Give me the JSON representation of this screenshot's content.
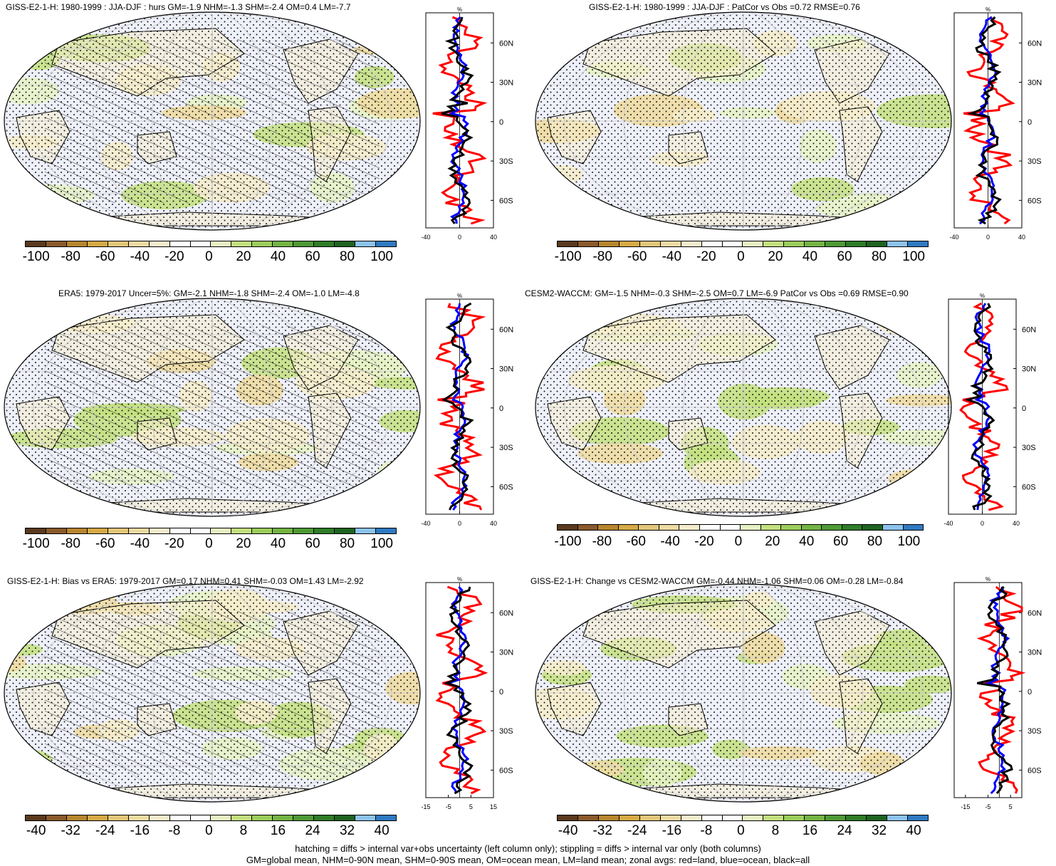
{
  "panels": [
    {
      "title": "GISS-E2-1-H: 1980-1999 : JJA-DJF : hurs GM=-1.9 NHM=-1.3 SHM=-2.4 OM=0.4 LM=-7.7",
      "colorbar_labels": [
        "-100",
        "-80",
        "-60",
        "-40",
        "-20",
        "0",
        "20",
        "40",
        "60",
        "80",
        "100"
      ],
      "zonal_xticks": [
        "-40",
        "0",
        "40"
      ],
      "zonal_xrange": [
        -40,
        40
      ],
      "zonal_unit": "%",
      "hatching": true,
      "green": 0.25,
      "brown": 0.25
    },
    {
      "title": "GISS-E2-1-H: 1980-1999 : JJA-DJF : PatCor vs Obs =0.72 RMSE=0.76",
      "colorbar_labels": [
        "-100",
        "-80",
        "-60",
        "-40",
        "-20",
        "0",
        "20",
        "40",
        "60",
        "80",
        "100"
      ],
      "zonal_xticks": [
        "-40",
        "0",
        "40"
      ],
      "zonal_xrange": [
        -40,
        40
      ],
      "zonal_unit": "%",
      "hatching": false,
      "green": 0.25,
      "brown": 0.25
    },
    {
      "title": "ERA5: 1979-2017 Uncer=5%: GM=-2.1 NHM=-1.8 SHM=-2.4 OM=-1.0 LM=-4.8",
      "colorbar_labels": [
        "-100",
        "-80",
        "-60",
        "-40",
        "-20",
        "0",
        "20",
        "40",
        "60",
        "80",
        "100"
      ],
      "zonal_xticks": [
        "-40",
        "0",
        "40"
      ],
      "zonal_xrange": [
        -40,
        40
      ],
      "zonal_unit": "%",
      "hatching": true,
      "green": 0.25,
      "brown": 0.25
    },
    {
      "title": "CESM2-WACCM: GM=-1.5 NHM=-0.3 SHM=-2.5 OM=0.7 LM=-6.9 PatCor vs Obs =0.69 RMSE=0.90",
      "colorbar_labels": [
        "-100",
        "-80",
        "-60",
        "-40",
        "-20",
        "0",
        "20",
        "40",
        "60",
        "80",
        "100"
      ],
      "zonal_xticks": [
        "-40",
        "0",
        "40"
      ],
      "zonal_xrange": [
        -40,
        40
      ],
      "zonal_unit": "%",
      "hatching": false,
      "green": 0.4,
      "brown": 0.3
    },
    {
      "title": "GISS-E2-1-H: Bias vs ERA5: 1979-2017 GM=0.17 NHM=0.41 SHM=-0.03 OM=1.43 LM=-2.92",
      "colorbar_labels": [
        "-40",
        "-32",
        "-24",
        "-16",
        "-8",
        "0",
        "8",
        "16",
        "24",
        "32",
        "40"
      ],
      "zonal_xticks": [
        "-15",
        "-5",
        "5",
        "15"
      ],
      "zonal_xrange": [
        -15,
        15
      ],
      "zonal_unit": "%",
      "hatching": true,
      "green": 0.6,
      "brown": 0.35
    },
    {
      "title": "GISS-E2-1-H: Change vs CESM2-WACCM GM=-0.44 NHM=-1.06 SHM=0.06 OM=-0.28 LM=-0.84",
      "colorbar_labels": [
        "-40",
        "-32",
        "-24",
        "-16",
        "-8",
        "0",
        "8",
        "16",
        "24",
        "32",
        "40"
      ],
      "zonal_xticks": [
        "-15",
        "-5",
        "5"
      ],
      "zonal_xrange": [
        -20,
        10
      ],
      "zonal_unit": "%",
      "hatching": false,
      "green": 0.55,
      "brown": 0.4
    }
  ],
  "lat_labels": [
    "60N",
    "30N",
    "0",
    "30S",
    "60S"
  ],
  "colors": {
    "palette": [
      "#5a3a1e",
      "#8b5a2b",
      "#b8862e",
      "#d6aa45",
      "#e3c77a",
      "#eedba3",
      "#f5eccc",
      "#ffffff",
      "#ffffff",
      "#e6f2c4",
      "#c3e07e",
      "#9ccd5c",
      "#74b443",
      "#4e9a35",
      "#2f7d28",
      "#1f6321",
      "#8cc3ee",
      "#2f7ac2"
    ],
    "land_line": "red",
    "ocean_line": "blue",
    "all_line": "black",
    "ocean_fill": "#eef0fa"
  },
  "footer": {
    "line1": "hatching = diffs > internal var+obs uncertainty (left column only); stippling = diffs > internal var only (both columns)",
    "line2": "GM=global mean, NHM=0-90N mean, SHM=0-90S mean, OM=ocean mean, LM=land mean; zonal avgs: red=land, blue=ocean, black=all"
  }
}
